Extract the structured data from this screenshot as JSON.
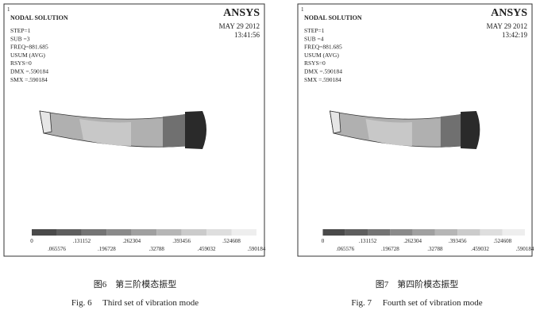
{
  "figures": [
    {
      "panel": {
        "corner": "1",
        "title": "NODAL SOLUTION",
        "info": [
          "STEP=1",
          "SUB =3",
          "FREQ=881.685",
          "USUM       (AVG)",
          "RSYS=0",
          "DMX =.590184",
          "SMX =.590184"
        ],
        "logo": "ANSYS",
        "date": "MAY 29 2012",
        "time": "13:41:56",
        "legend": {
          "upper": [
            "0",
            ".131152",
            ".262304",
            ".393456",
            ".524608"
          ],
          "lower": [
            ".065576",
            ".196728",
            ".32788",
            ".459032",
            ".590184"
          ]
        }
      },
      "caption_cn": "图6　第三阶模态振型",
      "caption_en": "Fig. 6　 Third set of vibration mode"
    },
    {
      "panel": {
        "corner": "1",
        "title": "NODAL SOLUTION",
        "info": [
          "STEP=1",
          "SUB =4",
          "FREQ=881.685",
          "USUM       (AVG)",
          "RSYS=0",
          "DMX =.590184",
          "SMX =.590184"
        ],
        "logo": "ANSYS",
        "date": "MAY 29 2012",
        "time": "13:42:19",
        "legend": {
          "upper": [
            "0",
            ".131152",
            ".262304",
            ".393456",
            ".524608"
          ],
          "lower": [
            ".065576",
            ".196728",
            ".32788",
            ".459032",
            ".590184"
          ]
        }
      },
      "caption_cn": "图7　第四阶模态振型",
      "caption_en": "Fig. 7　 Fourth set of vibration mode"
    }
  ]
}
